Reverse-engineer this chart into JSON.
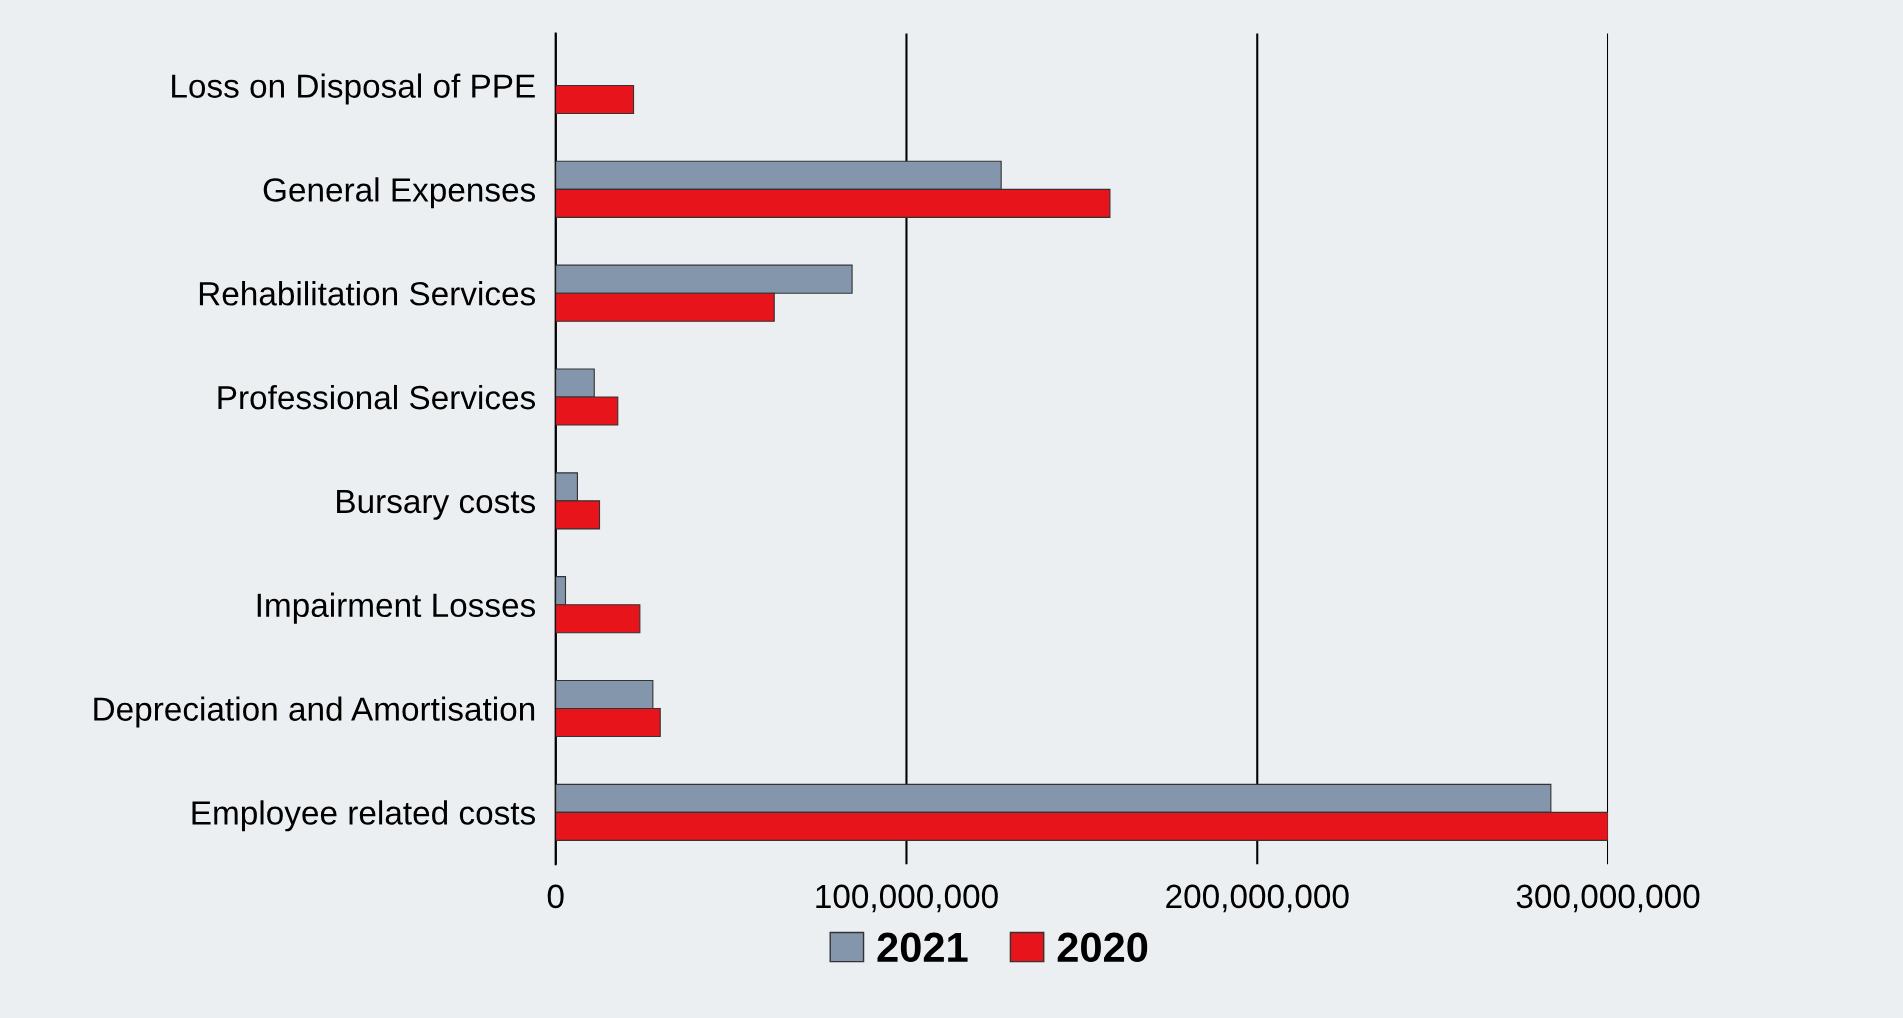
{
  "chart_data": {
    "type": "bar",
    "orientation": "horizontal",
    "categories": [
      "Loss on Disposal of PPE",
      "General Expenses",
      "Rehabilitation Services",
      "Professional Services",
      "Bursary costs",
      "Impairment Losses",
      "Depreciation and Amortisation",
      "Employee related costs"
    ],
    "series": [
      {
        "name": "2021",
        "color": "#8496ab",
        "values": [
          null,
          127000000,
          84500000,
          11000000,
          6200000,
          2800000,
          27700000,
          283700000
        ]
      },
      {
        "name": "2020",
        "color": "#e8141c",
        "values": [
          22200000,
          158000000,
          62300000,
          17700000,
          12500000,
          24000000,
          29800000,
          300000000
        ]
      }
    ],
    "xlim": [
      0,
      300000000
    ],
    "xticks": [
      0,
      {
        "value": 100000000,
        "label": "100,000,000"
      },
      {
        "value": 200000000,
        "label": "200,000,000"
      },
      {
        "value": 300000000,
        "label": "300,000,000"
      }
    ],
    "grid": "x",
    "legend": "bottom"
  }
}
